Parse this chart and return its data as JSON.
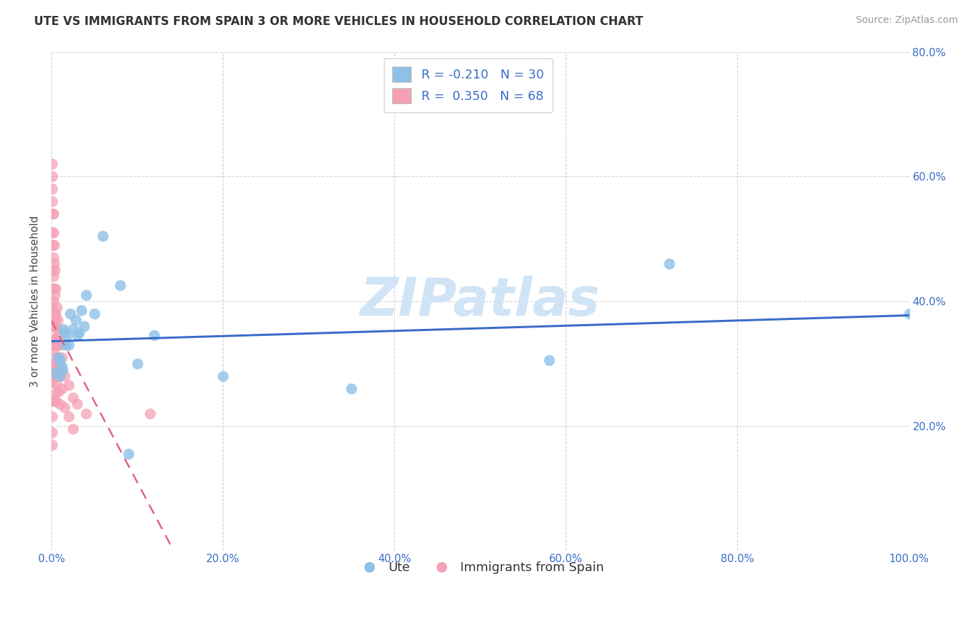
{
  "title": "UTE VS IMMIGRANTS FROM SPAIN 3 OR MORE VEHICLES IN HOUSEHOLD CORRELATION CHART",
  "source": "Source: ZipAtlas.com",
  "ylabel": "3 or more Vehicles in Household",
  "legend_ute_label": "Ute",
  "legend_spain_label": "Immigrants from Spain",
  "ute_r": "-0.210",
  "ute_n": "30",
  "spain_r": "0.350",
  "spain_n": "68",
  "xlim": [
    0,
    1.0
  ],
  "ylim": [
    0,
    0.8
  ],
  "background_color": "#ffffff",
  "grid_color": "#cccccc",
  "ute_color": "#8ec0e8",
  "ute_line_color": "#3a6bc9",
  "spain_color": "#f5a0b5",
  "spain_line_color": "#e06080",
  "watermark_color": "#d0e4f5",
  "ute_x": [
    0.005,
    0.008,
    0.01,
    0.01,
    0.012,
    0.013,
    0.014,
    0.015,
    0.016,
    0.018,
    0.02,
    0.022,
    0.025,
    0.028,
    0.03,
    0.032,
    0.035,
    0.038,
    0.04,
    0.05,
    0.06,
    0.08,
    0.09,
    0.1,
    0.12,
    0.2,
    0.35,
    0.58,
    0.72,
    1.0
  ],
  "ute_y": [
    0.285,
    0.31,
    0.305,
    0.28,
    0.295,
    0.29,
    0.355,
    0.35,
    0.33,
    0.345,
    0.33,
    0.38,
    0.355,
    0.37,
    0.345,
    0.35,
    0.385,
    0.36,
    0.41,
    0.38,
    0.505,
    0.425,
    0.155,
    0.3,
    0.345,
    0.28,
    0.26,
    0.305,
    0.46,
    0.38
  ],
  "spain_x": [
    0.001,
    0.001,
    0.001,
    0.001,
    0.001,
    0.001,
    0.001,
    0.001,
    0.001,
    0.001,
    0.001,
    0.001,
    0.001,
    0.001,
    0.001,
    0.001,
    0.001,
    0.001,
    0.002,
    0.002,
    0.002,
    0.002,
    0.002,
    0.002,
    0.002,
    0.002,
    0.003,
    0.003,
    0.003,
    0.003,
    0.003,
    0.003,
    0.003,
    0.004,
    0.004,
    0.004,
    0.004,
    0.004,
    0.004,
    0.005,
    0.005,
    0.005,
    0.005,
    0.005,
    0.006,
    0.006,
    0.006,
    0.006,
    0.007,
    0.007,
    0.007,
    0.008,
    0.008,
    0.008,
    0.01,
    0.01,
    0.01,
    0.012,
    0.012,
    0.015,
    0.015,
    0.02,
    0.02,
    0.025,
    0.025,
    0.03,
    0.04,
    0.115
  ],
  "spain_y": [
    0.62,
    0.6,
    0.58,
    0.56,
    0.54,
    0.51,
    0.49,
    0.45,
    0.42,
    0.39,
    0.36,
    0.33,
    0.3,
    0.27,
    0.24,
    0.215,
    0.19,
    0.17,
    0.54,
    0.51,
    0.47,
    0.44,
    0.4,
    0.36,
    0.32,
    0.28,
    0.49,
    0.46,
    0.42,
    0.38,
    0.34,
    0.3,
    0.25,
    0.45,
    0.41,
    0.37,
    0.33,
    0.29,
    0.24,
    0.42,
    0.38,
    0.34,
    0.29,
    0.24,
    0.39,
    0.355,
    0.31,
    0.265,
    0.37,
    0.33,
    0.28,
    0.345,
    0.305,
    0.255,
    0.33,
    0.285,
    0.235,
    0.31,
    0.26,
    0.28,
    0.23,
    0.265,
    0.215,
    0.245,
    0.195,
    0.235,
    0.22,
    0.22
  ]
}
